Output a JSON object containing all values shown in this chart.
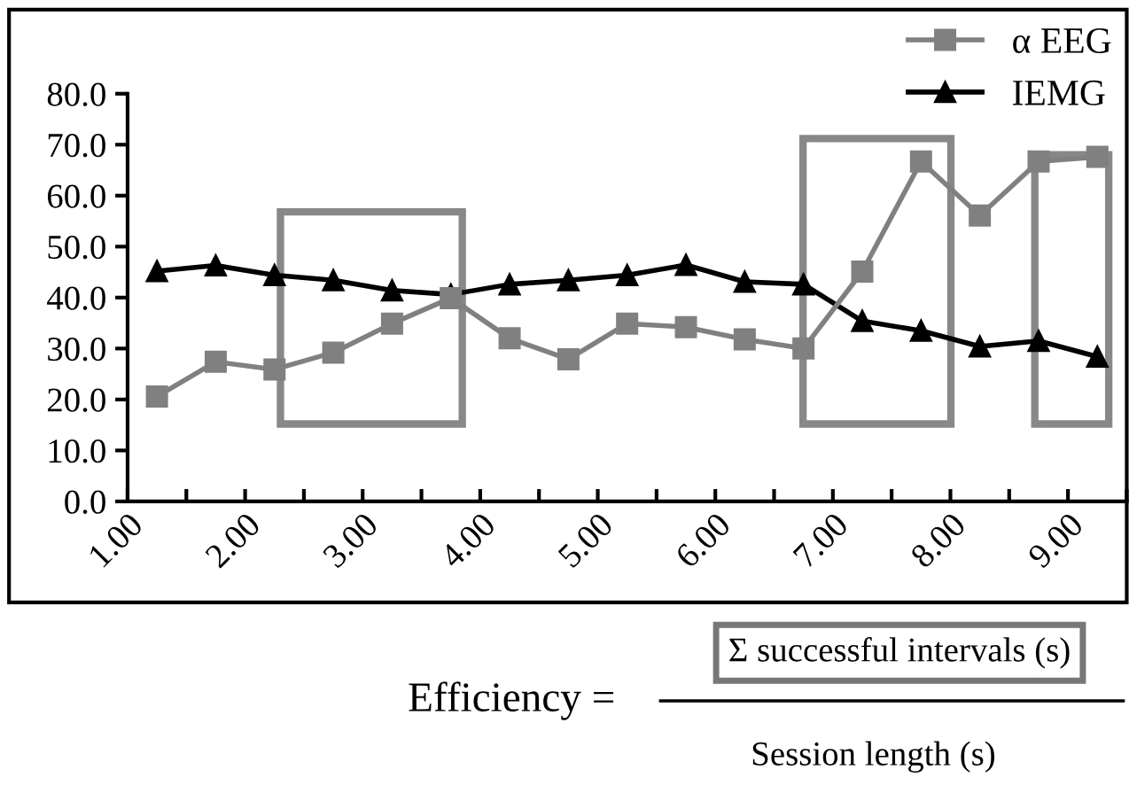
{
  "chart_data": {
    "type": "line",
    "x": [
      1.25,
      1.75,
      2.25,
      2.75,
      3.25,
      3.75,
      4.25,
      4.75,
      5.25,
      5.75,
      6.25,
      6.75,
      7.25,
      7.75,
      8.25,
      8.75,
      9.25
    ],
    "series": [
      {
        "name": "α EEG",
        "color": "#808080",
        "marker": "square",
        "values": [
          20.6,
          27.4,
          25.9,
          29.2,
          34.9,
          39.9,
          32.0,
          27.9,
          34.9,
          34.2,
          31.8,
          30.0,
          45.1,
          66.7,
          56.1,
          66.7,
          67.6
        ]
      },
      {
        "name": "IEMG",
        "color": "#000000",
        "marker": "triangle",
        "values": [
          45.2,
          46.3,
          44.4,
          43.4,
          41.4,
          40.6,
          42.6,
          43.4,
          44.4,
          46.4,
          43.1,
          42.6,
          35.4,
          33.5,
          30.4,
          31.5,
          28.4
        ]
      }
    ],
    "xlim": [
      1.0,
      9.5
    ],
    "xticks": [
      {
        "value": 1.0,
        "label": "1.00"
      },
      {
        "value": 1.5,
        "label": null
      },
      {
        "value": 2.0,
        "label": "2.00"
      },
      {
        "value": 2.5,
        "label": null
      },
      {
        "value": 3.0,
        "label": "3.00"
      },
      {
        "value": 3.5,
        "label": null
      },
      {
        "value": 4.0,
        "label": "4.00"
      },
      {
        "value": 4.5,
        "label": null
      },
      {
        "value": 5.0,
        "label": "5.00"
      },
      {
        "value": 5.5,
        "label": null
      },
      {
        "value": 6.0,
        "label": "6.00"
      },
      {
        "value": 6.5,
        "label": null
      },
      {
        "value": 7.0,
        "label": "7.00"
      },
      {
        "value": 7.5,
        "label": null
      },
      {
        "value": 8.0,
        "label": "8.00"
      },
      {
        "value": 8.5,
        "label": null
      },
      {
        "value": 9.0,
        "label": "9.00"
      },
      {
        "value": 9.5,
        "label": null
      }
    ],
    "ylim": [
      0,
      80
    ],
    "yticks": [
      {
        "value": 0,
        "label": "0.0"
      },
      {
        "value": 10,
        "label": "10.0"
      },
      {
        "value": 20,
        "label": "20.0"
      },
      {
        "value": 30,
        "label": "30.0"
      },
      {
        "value": 40,
        "label": "40.0"
      },
      {
        "value": 50,
        "label": "50.0"
      },
      {
        "value": 60,
        "label": "60.0"
      },
      {
        "value": 70,
        "label": "70.0"
      },
      {
        "value": 80,
        "label": "80.0"
      }
    ],
    "grid": false,
    "legend": "top right",
    "annotations": [
      "Efficiency =",
      "Σ successful intervals (s)",
      "Session length (s)"
    ]
  }
}
